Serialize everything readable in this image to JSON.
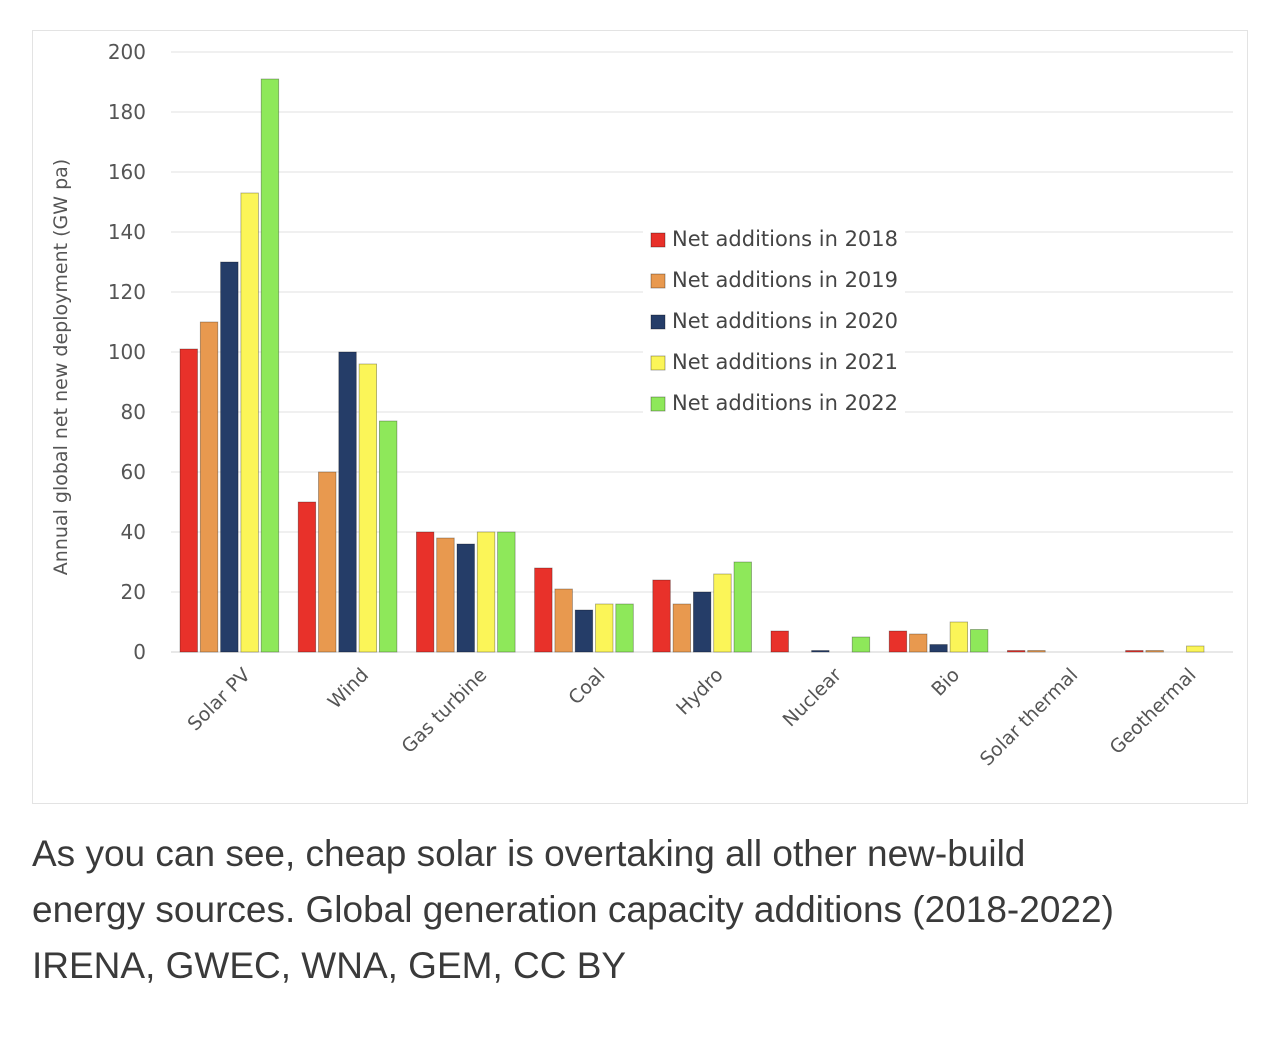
{
  "chart_data": {
    "type": "bar",
    "title": "",
    "xlabel": "",
    "ylabel": "Annual global net new deployment (GW pa)",
    "ylim": [
      0,
      200
    ],
    "yticks": [
      0,
      20,
      40,
      60,
      80,
      100,
      120,
      140,
      160,
      180,
      200
    ],
    "grid": true,
    "legend_position": "center-right",
    "categories": [
      "Solar PV",
      "Wind",
      "Gas turbine",
      "Coal",
      "Hydro",
      "Nuclear",
      "Bio",
      "Solar thermal",
      "Geothermal"
    ],
    "series": [
      {
        "name": "Net additions in 2018",
        "color": "#e8312a",
        "values": [
          101,
          50,
          40,
          28,
          24,
          7,
          7,
          0.5,
          0.5
        ]
      },
      {
        "name": "Net additions in 2019",
        "color": "#e8994f",
        "values": [
          110,
          60,
          38,
          21,
          16,
          0,
          6,
          0.5,
          0.5
        ]
      },
      {
        "name": "Net additions in 2020",
        "color": "#253d68",
        "values": [
          130,
          100,
          36,
          14,
          20,
          0.5,
          2.5,
          0,
          0
        ]
      },
      {
        "name": "Net additions in 2021",
        "color": "#fbf558",
        "values": [
          153,
          96,
          40,
          16,
          26,
          0,
          10,
          0,
          2
        ]
      },
      {
        "name": "Net additions in 2022",
        "color": "#8ee85a",
        "values": [
          191,
          77,
          40,
          16,
          30,
          5,
          7.5,
          0,
          0
        ]
      }
    ]
  },
  "caption": {
    "line1": "As you can see, cheap solar is overtaking all other new-build",
    "line2": "energy sources. Global generation capacity additions (2018-2022)",
    "line3": "IRENA, GWEC, WNA, GEM, CC BY"
  }
}
